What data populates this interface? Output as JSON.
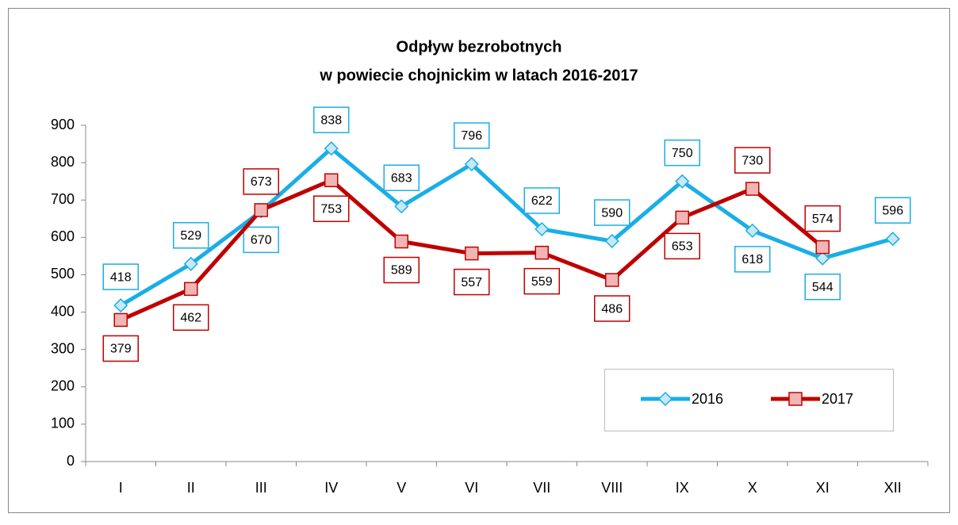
{
  "chart_data": {
    "type": "line",
    "title": [
      "Odpływ bezrobotnych",
      "w powiecie chojnickim w latach 2016-2017"
    ],
    "categories": [
      "I",
      "II",
      "III",
      "IV",
      "V",
      "VI",
      "VII",
      "VIII",
      "IX",
      "X",
      "XI",
      "XII"
    ],
    "series": [
      {
        "name": "2016",
        "color": "#1aaee6",
        "marker": "diamond",
        "values": [
          418,
          529,
          670,
          838,
          683,
          796,
          622,
          590,
          750,
          618,
          544,
          596
        ]
      },
      {
        "name": "2017",
        "color": "#c00000",
        "marker": "square",
        "values": [
          379,
          462,
          673,
          753,
          589,
          557,
          559,
          486,
          653,
          730,
          574,
          null
        ]
      }
    ],
    "ylim": [
      0,
      900
    ],
    "yticks": [
      0,
      100,
      200,
      300,
      400,
      500,
      600,
      700,
      800,
      900
    ],
    "grid": false,
    "legend": "bottom-right"
  }
}
